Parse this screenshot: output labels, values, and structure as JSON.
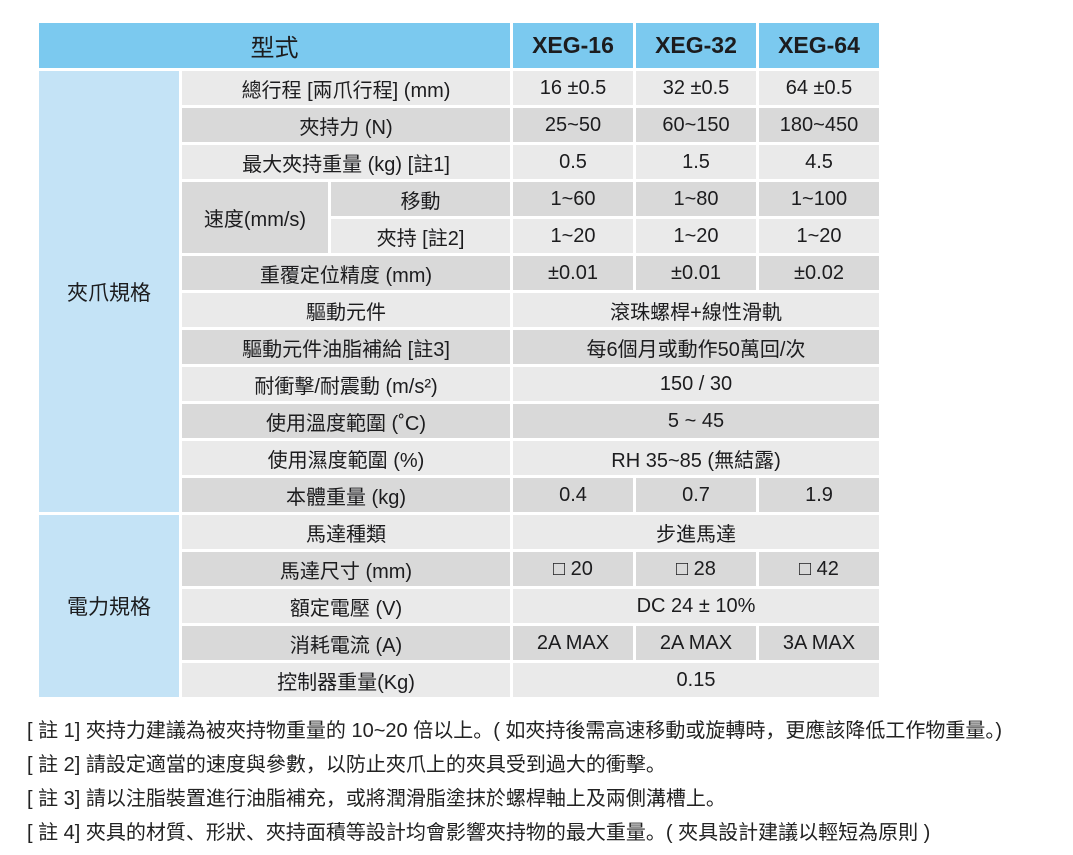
{
  "colors": {
    "header_blue": "#7bc9ef",
    "group_blue": "#c4e3f6",
    "row_light": "#eaeaea",
    "row_dark": "#d9d9d9",
    "text": "#1c1c1e"
  },
  "table": {
    "header": {
      "model_label": "型式",
      "columns": [
        "XEG-16",
        "XEG-32",
        "XEG-64"
      ]
    },
    "groups": {
      "gripper": "夾爪規格",
      "power": "電力規格"
    },
    "speed_label": "速度(mm/s)",
    "rows": [
      {
        "label": "總行程 [兩爪行程] (mm)",
        "values": [
          "16 ±0.5",
          "32 ±0.5",
          "64 ±0.5"
        ]
      },
      {
        "label": "夾持力 (N)",
        "values": [
          "25~50",
          "60~150",
          "180~450"
        ]
      },
      {
        "label": "最大夾持重量 (kg) [註1]",
        "values": [
          "0.5",
          "1.5",
          "4.5"
        ]
      },
      {
        "label": "移動",
        "values": [
          "1~60",
          "1~80",
          "1~100"
        ]
      },
      {
        "label": "夾持 [註2]",
        "values": [
          "1~20",
          "1~20",
          "1~20"
        ]
      },
      {
        "label": "重覆定位精度 (mm)",
        "values": [
          "±0.01",
          "±0.01",
          "±0.02"
        ]
      },
      {
        "label": "驅動元件",
        "span": "滾珠螺桿+線性滑軌"
      },
      {
        "label": "驅動元件油脂補給 [註3]",
        "span": "每6個月或動作50萬回/次"
      },
      {
        "label": "耐衝擊/耐震動 (m/s²)",
        "span": "150 / 30"
      },
      {
        "label": "使用溫度範圍 (˚C)",
        "span": "5 ~ 45"
      },
      {
        "label": "使用濕度範圍 (%)",
        "span": "RH 35~85 (無結露)"
      },
      {
        "label": "本體重量 (kg)",
        "values": [
          "0.4",
          "0.7",
          "1.9"
        ]
      },
      {
        "label": "馬達種類",
        "span": "步進馬達"
      },
      {
        "label": "馬達尺寸 (mm)",
        "values": [
          "□ 20",
          "□ 28",
          "□ 42"
        ]
      },
      {
        "label": "額定電壓 (V)",
        "span": "DC 24 ± 10%"
      },
      {
        "label": "消耗電流 (A)",
        "values": [
          "2A MAX",
          "2A MAX",
          "3A MAX"
        ]
      },
      {
        "label": "控制器重量(Kg)",
        "span": "0.15"
      }
    ]
  },
  "notes": [
    "[ 註 1] 夾持力建議為被夾持物重量的 10~20 倍以上。( 如夾持後需高速移動或旋轉時，更應該降低工作物重量。)",
    "[ 註 2] 請設定適當的速度與參數，以防止夾爪上的夾具受到過大的衝擊。",
    "[ 註 3] 請以注脂裝置進行油脂補充，或將潤滑脂塗抹於螺桿軸上及兩側溝槽上。",
    "[ 註 4] 夾具的材質、形狀、夾持面積等設計均會影響夾持物的最大重量。( 夾具設計建議以輕短為原則 )"
  ]
}
